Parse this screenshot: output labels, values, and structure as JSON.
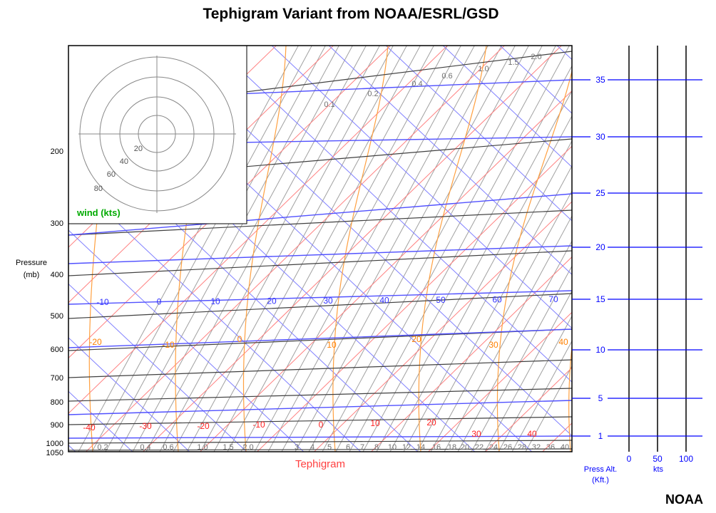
{
  "title": "Tephigram Variant from NOAA/ESRL/GSD",
  "footer": "NOAA",
  "chart_data": {
    "type": "tephigram",
    "xlabel": "Tephigram",
    "ylabel": "Pressure (mb)",
    "pressure_levels": [
      "1050",
      "1000",
      "900",
      "800",
      "700",
      "600",
      "500",
      "400",
      "300",
      "200"
    ],
    "isotherm_labels": [
      "-10",
      "0",
      "10",
      "20",
      "30",
      "40",
      "50",
      "60",
      "70"
    ],
    "dry_adiabat_labels": [
      "-40",
      "-30",
      "-20",
      "-10",
      "0",
      "10",
      "20",
      "30",
      "40"
    ],
    "moist_adiabat_labels": [
      "-20",
      "-10",
      "0",
      "10",
      "20",
      "30",
      "40"
    ],
    "mixing_ratio_bottom_labels": [
      "0.2",
      "0.4",
      "0.6",
      "1.0",
      "1.5",
      "2.0",
      "3",
      "4",
      "5",
      "6",
      "7",
      "8",
      "10",
      "12",
      "14",
      "16",
      "18",
      "20",
      "22",
      "24",
      "26",
      "28",
      "32",
      "36",
      "40"
    ],
    "mixing_ratio_top_labels": [
      "0.1",
      "0.2",
      "0.4",
      "0.6",
      "1.0",
      "1.5",
      "2.0"
    ],
    "altitude_axis": {
      "label": "Press Alt. (Kft.)",
      "ticks": [
        "1",
        "5",
        "10",
        "15",
        "20",
        "25",
        "30",
        "35"
      ]
    },
    "wind_speed_axis": {
      "label": "kts",
      "ticks": [
        "0",
        "50",
        "100"
      ]
    },
    "wind_inset": {
      "label": "wind (kts)",
      "ring_labels": [
        "20",
        "40",
        "60",
        "80"
      ]
    },
    "colors": {
      "isotherm": "#8080ff",
      "dry_adiabat": "#ff8080",
      "moist_adiabat": "#ffa040",
      "mixing_ratio": "#a0a0a0",
      "isobar": "#404040",
      "altitude": "#0000ff",
      "wind_label": "#00aa00"
    }
  }
}
